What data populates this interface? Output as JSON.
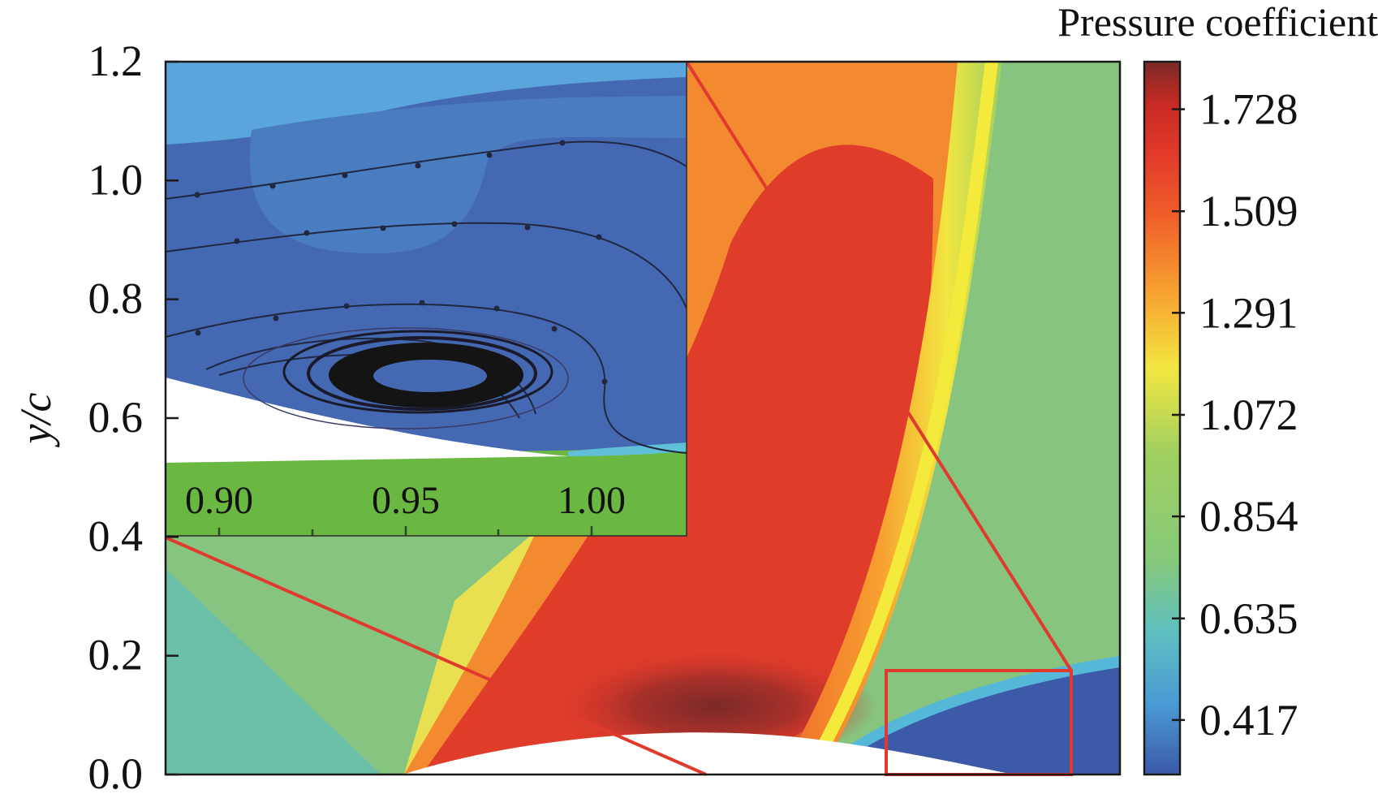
{
  "chart_data": {
    "type": "heatmap",
    "title": "",
    "ylabel": "y/c",
    "xlabel": "",
    "ylim": [
      0.0,
      1.2
    ],
    "y_ticks": [
      "0.0",
      "0.2",
      "0.4",
      "0.6",
      "0.8",
      "1.0",
      "1.2"
    ],
    "y_tick_values": [
      0.0,
      0.2,
      0.4,
      0.6,
      0.8,
      1.0,
      1.2
    ],
    "colorbar": {
      "label": "Pressure coefficient",
      "range": [
        0.3,
        1.83
      ],
      "tick_labels": [
        "1.728",
        "1.509",
        "1.291",
        "1.072",
        "0.854",
        "0.635",
        "0.417"
      ],
      "tick_values": [
        1.728,
        1.509,
        1.291,
        1.072,
        0.854,
        0.635,
        0.417
      ],
      "colors": [
        "#3c5aa8",
        "#4a9ad4",
        "#5fc0c0",
        "#86c87a",
        "#9fd060",
        "#f2e640",
        "#f7a030",
        "#f0602a",
        "#e23a2a",
        "#c82a24",
        "#7a2a26"
      ]
    },
    "inset": {
      "x_ticks": [
        "0.90",
        "0.95",
        "1.00"
      ],
      "x_tick_values": [
        0.9,
        0.95,
        1.0
      ]
    },
    "grid": false,
    "legend": "none"
  }
}
